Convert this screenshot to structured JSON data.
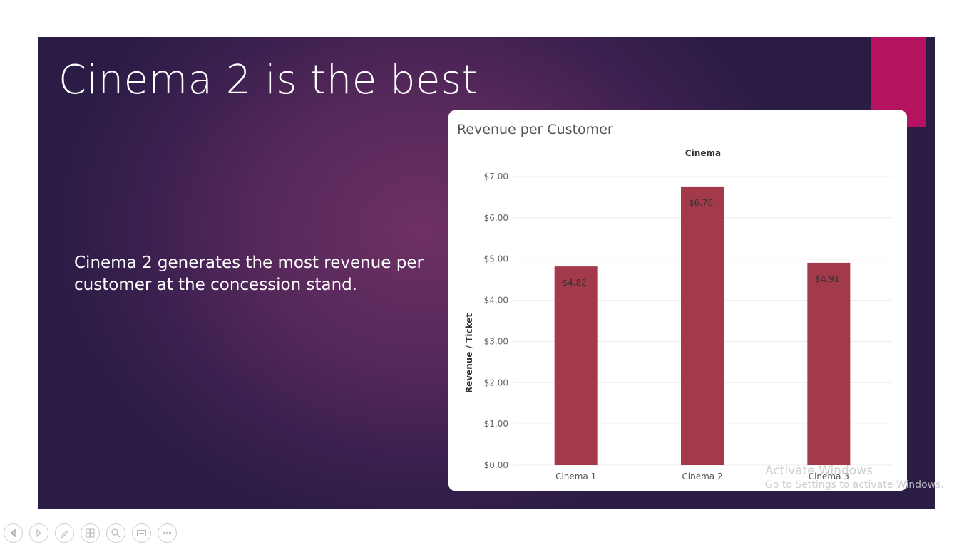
{
  "slide": {
    "title": "Cinema 2 is the best",
    "body": "Cinema 2 generates the most revenue per customer at the concession stand.",
    "accent_color": "#b5135f"
  },
  "chart_data": {
    "type": "bar",
    "title": "Revenue per Customer",
    "column_header": "Cinema",
    "ylabel": "Revenue / Ticket",
    "categories": [
      "Cinema 1",
      "Cinema 2",
      "Cinema 3"
    ],
    "values": [
      4.82,
      6.76,
      4.91
    ],
    "value_labels": [
      "$4.82",
      "$6.76",
      "$4.91"
    ],
    "yticks": [
      0,
      1,
      2,
      3,
      4,
      5,
      6,
      7
    ],
    "ytick_labels": [
      "$0.00",
      "$1.00",
      "$2.00",
      "$3.00",
      "$4.00",
      "$5.00",
      "$6.00",
      "$7.00"
    ],
    "ylim": [
      0,
      7
    ],
    "bar_color": "#a33a4b",
    "grid": true
  },
  "watermark": {
    "line1": "Activate Windows",
    "line2": "Go to Settings to activate Windows."
  },
  "controls": [
    {
      "name": "previous-slide-button",
      "icon": "triangle-left-icon"
    },
    {
      "name": "next-slide-button",
      "icon": "triangle-right-icon"
    },
    {
      "name": "pen-tool-button",
      "icon": "pen-icon"
    },
    {
      "name": "see-all-slides-button",
      "icon": "slides-grid-icon"
    },
    {
      "name": "zoom-button",
      "icon": "magnifier-icon"
    },
    {
      "name": "subtitles-button",
      "icon": "subtitles-icon"
    },
    {
      "name": "more-options-button",
      "icon": "ellipsis-icon"
    }
  ]
}
